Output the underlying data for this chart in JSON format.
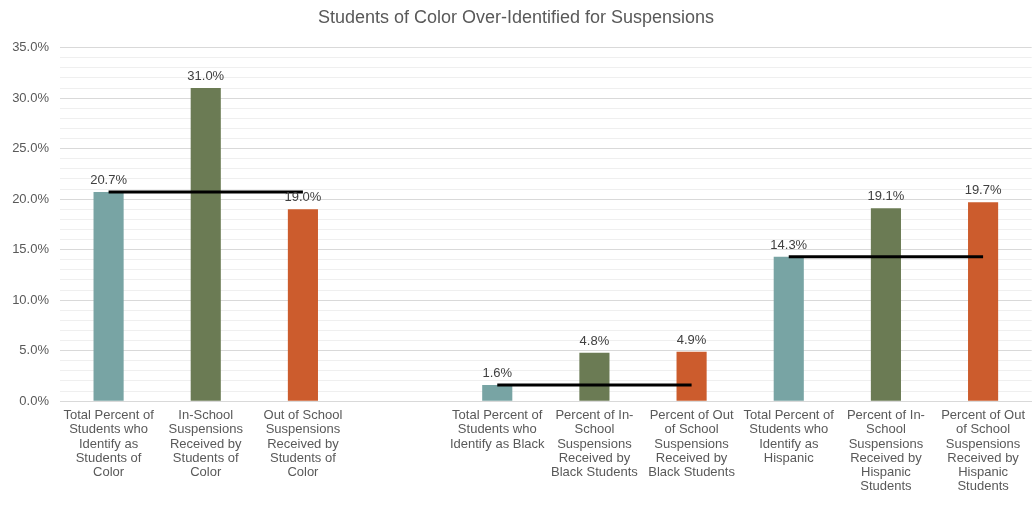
{
  "chart_data": {
    "type": "bar",
    "title": "Students of Color Over-Identified for Suspensions",
    "categories": [
      "Total Percent of Students who Identify as Students of Color",
      "In-School Suspensions Received by Students of Color",
      "Out of School Suspensions Received by Students of Color",
      null,
      "Total Percent of Students who Identify as Black",
      "Percent of In-School Suspensions Received by Black Students",
      "Percent of Out of School Suspensions Received by Black Students",
      "Total Percent of Students who Identify as Hispanic",
      "Percent of In-School Suspensions Received by Hispanic Students",
      "Percent of Out of School Suspensions Received by Hispanic Students"
    ],
    "series": [
      {
        "values": [
          20.7,
          31.0,
          19.0,
          null,
          1.6,
          4.8,
          4.9,
          14.3,
          19.1,
          19.7
        ],
        "colors": [
          "#78a4a4",
          "#6b7b54",
          "#cc5c2d",
          null,
          "#78a4a4",
          "#6b7b54",
          "#cc5c2d",
          "#78a4a4",
          "#6b7b54",
          "#cc5c2d"
        ],
        "value_labels": [
          "20.7%",
          "31.0%",
          "19.0%",
          null,
          "1.6%",
          "4.8%",
          "4.9%",
          "14.3%",
          "19.1%",
          "19.7%"
        ]
      },
      {
        "type": "line",
        "color": "#000000",
        "values": [
          20.7,
          20.7,
          20.7,
          null,
          null,
          null,
          null,
          null,
          null,
          null
        ]
      },
      {
        "type": "line",
        "color": "#000000",
        "values": [
          null,
          null,
          null,
          null,
          1.6,
          1.6,
          1.6,
          null,
          null,
          null
        ]
      },
      {
        "type": "line",
        "color": "#000000",
        "values": [
          null,
          null,
          null,
          null,
          null,
          null,
          null,
          14.3,
          14.3,
          14.3
        ]
      }
    ],
    "ylim": [
      0,
      35
    ],
    "yticks": [
      {
        "value": 0,
        "label": "0.0%"
      },
      {
        "value": 1,
        "label": null
      },
      {
        "value": 2,
        "label": null
      },
      {
        "value": 3,
        "label": null
      },
      {
        "value": 4,
        "label": null
      },
      {
        "value": 5,
        "label": "5.0%"
      },
      {
        "value": 6,
        "label": null
      },
      {
        "value": 7,
        "label": null
      },
      {
        "value": 8,
        "label": null
      },
      {
        "value": 9,
        "label": null
      },
      {
        "value": 10,
        "label": "10.0%"
      },
      {
        "value": 11,
        "label": null
      },
      {
        "value": 12,
        "label": null
      },
      {
        "value": 13,
        "label": null
      },
      {
        "value": 14,
        "label": null
      },
      {
        "value": 15,
        "label": "15.0%"
      },
      {
        "value": 16,
        "label": null
      },
      {
        "value": 17,
        "label": null
      },
      {
        "value": 18,
        "label": null
      },
      {
        "value": 19,
        "label": null
      },
      {
        "value": 20,
        "label": "20.0%"
      },
      {
        "value": 21,
        "label": null
      },
      {
        "value": 22,
        "label": null
      },
      {
        "value": 23,
        "label": null
      },
      {
        "value": 24,
        "label": null
      },
      {
        "value": 25,
        "label": "25.0%"
      },
      {
        "value": 26,
        "label": null
      },
      {
        "value": 27,
        "label": null
      },
      {
        "value": 28,
        "label": null
      },
      {
        "value": 29,
        "label": null
      },
      {
        "value": 30,
        "label": "30.0%"
      },
      {
        "value": 31,
        "label": null
      },
      {
        "value": 32,
        "label": null
      },
      {
        "value": 33,
        "label": null
      },
      {
        "value": 34,
        "label": null
      },
      {
        "value": 35,
        "label": "35.0%"
      }
    ],
    "grid": "y",
    "marker": "none"
  }
}
